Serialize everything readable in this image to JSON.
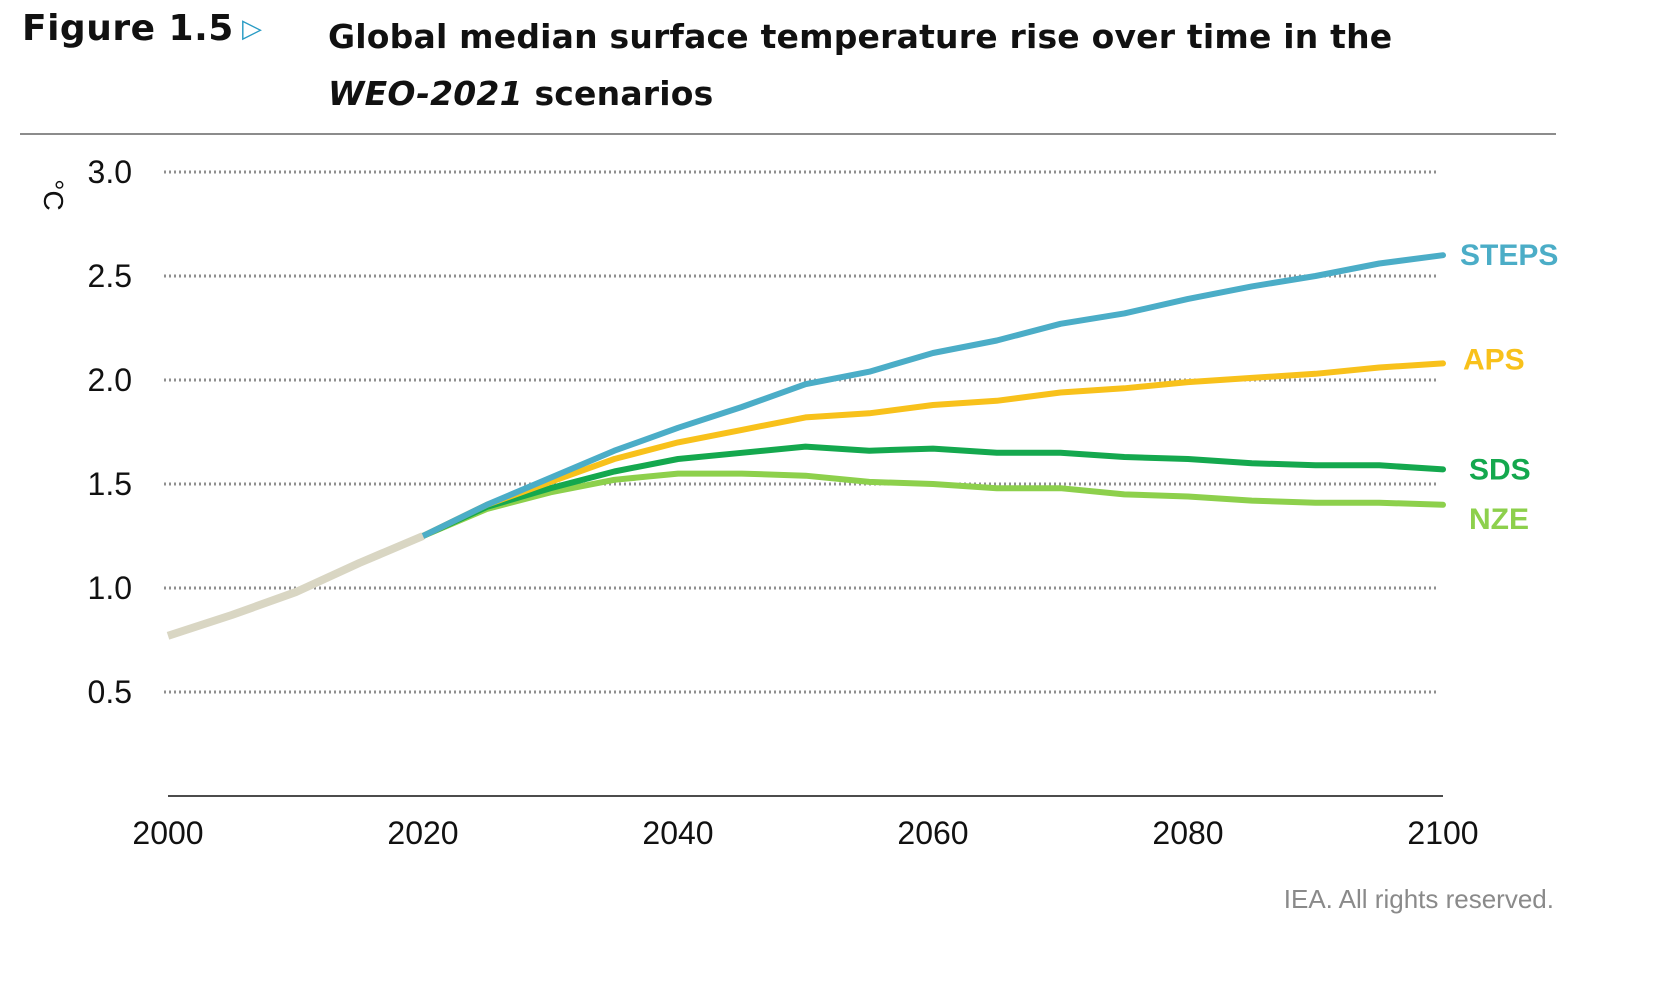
{
  "header": {
    "figure_label": "Figure 1.5",
    "title_part1": "Global median surface temperature rise over time in the",
    "title_italic": "WEO-2021",
    "title_part2": "scenarios"
  },
  "credit": "IEA. All rights reserved.",
  "chart_data": {
    "type": "line",
    "title": "Global median surface temperature rise over time in the WEO-2021 scenarios",
    "ylabel": "°C",
    "xlabel": "",
    "xlim": [
      2000,
      2100
    ],
    "ylim": [
      0,
      3.0
    ],
    "xticks": [
      2000,
      2020,
      2040,
      2060,
      2080,
      2100
    ],
    "yticks": [
      0.5,
      1.0,
      1.5,
      2.0,
      2.5,
      3.0
    ],
    "ytick_labels": [
      "0.5",
      "1.0",
      "1.5",
      "2.0",
      "2.5",
      "3.0"
    ],
    "grid": "horizontal dotted",
    "legend": "inline labels at line ends (right)",
    "historical": {
      "color": "#d9d6c3",
      "x": [
        2000,
        2005,
        2010,
        2015,
        2020
      ],
      "y": [
        0.77,
        0.87,
        0.98,
        1.12,
        1.25
      ]
    },
    "series": [
      {
        "name": "STEPS",
        "color": "#4badc7",
        "x": [
          2020,
          2025,
          2030,
          2035,
          2040,
          2045,
          2050,
          2055,
          2060,
          2065,
          2070,
          2075,
          2080,
          2085,
          2090,
          2095,
          2100
        ],
        "y": [
          1.25,
          1.4,
          1.53,
          1.66,
          1.77,
          1.87,
          1.98,
          2.04,
          2.13,
          2.19,
          2.27,
          2.32,
          2.39,
          2.45,
          2.5,
          2.56,
          2.6
        ]
      },
      {
        "name": "APS",
        "color": "#f8c11b",
        "x": [
          2020,
          2025,
          2030,
          2035,
          2040,
          2045,
          2050,
          2055,
          2060,
          2065,
          2070,
          2075,
          2080,
          2085,
          2090,
          2095,
          2100
        ],
        "y": [
          1.25,
          1.4,
          1.51,
          1.62,
          1.7,
          1.76,
          1.82,
          1.84,
          1.88,
          1.9,
          1.94,
          1.96,
          1.99,
          2.01,
          2.03,
          2.06,
          2.08
        ]
      },
      {
        "name": "SDS",
        "color": "#14a84e",
        "x": [
          2020,
          2025,
          2030,
          2035,
          2040,
          2045,
          2050,
          2055,
          2060,
          2065,
          2070,
          2075,
          2080,
          2085,
          2090,
          2095,
          2100
        ],
        "y": [
          1.25,
          1.39,
          1.48,
          1.56,
          1.62,
          1.65,
          1.68,
          1.66,
          1.67,
          1.65,
          1.65,
          1.63,
          1.62,
          1.6,
          1.59,
          1.59,
          1.57
        ]
      },
      {
        "name": "NZE",
        "color": "#8dd04c",
        "x": [
          2020,
          2025,
          2030,
          2035,
          2040,
          2045,
          2050,
          2055,
          2060,
          2065,
          2070,
          2075,
          2080,
          2085,
          2090,
          2095,
          2100
        ],
        "y": [
          1.25,
          1.38,
          1.46,
          1.52,
          1.55,
          1.55,
          1.54,
          1.51,
          1.5,
          1.48,
          1.48,
          1.45,
          1.44,
          1.42,
          1.41,
          1.41,
          1.4
        ]
      }
    ]
  }
}
